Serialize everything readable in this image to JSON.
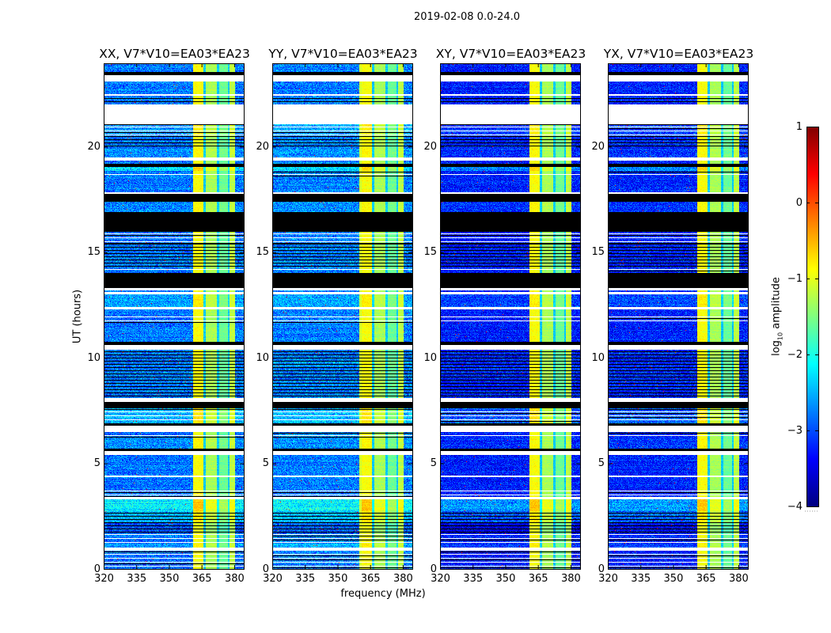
{
  "figure_title": "2019-02-08 0.0-24.0",
  "chart_data": {
    "type": "heatmap",
    "title": "2019-02-08 0.0-24.0",
    "xlabel": "frequency (MHz)",
    "ylabel": "UT (hours)",
    "xlim": [
      320,
      384.4
    ],
    "ylim": [
      0,
      23.95
    ],
    "xticks": [
      320,
      335,
      350,
      365,
      380
    ],
    "yticks": [
      0,
      5,
      10,
      15,
      20
    ],
    "panels": [
      {
        "title": "XX, V7*V10=EA03*EA23",
        "low_level": -2.8,
        "high_start": 361
      },
      {
        "title": "YY, V7*V10=EA03*EA23",
        "low_level": -2.75,
        "high_start": 360
      },
      {
        "title": "XY, V7*V10=EA03*EA23",
        "low_level": -3.25,
        "high_start": 361
      },
      {
        "title": "YX, V7*V10=EA03*EA23",
        "low_level": -3.2,
        "high_start": 361
      }
    ],
    "freq_bands": [
      {
        "from": 361,
        "to": 366,
        "level": -0.9
      },
      {
        "from": 366,
        "to": 367,
        "level": -2.4
      },
      {
        "from": 367,
        "to": 372,
        "level": -1.3
      },
      {
        "from": 372,
        "to": 373,
        "level": -2.4
      },
      {
        "from": 373,
        "to": 377,
        "level": -1.6
      },
      {
        "from": 377,
        "to": 378,
        "level": -2.4
      },
      {
        "from": 378,
        "to": 380.5,
        "level": -1.2
      }
    ],
    "time_segments": [
      [
        0.0,
        0.85,
        "striped_white",
        0
      ],
      [
        0.85,
        1.0,
        "white",
        0
      ],
      [
        1.0,
        1.2,
        "data",
        0.2
      ],
      [
        1.2,
        1.7,
        "striped_white",
        0
      ],
      [
        1.7,
        2.2,
        "striped",
        -0.2
      ],
      [
        2.2,
        2.75,
        "striped",
        0.3
      ],
      [
        2.75,
        3.3,
        "data",
        0.6
      ],
      [
        3.3,
        3.4,
        "white",
        0
      ],
      [
        3.4,
        3.75,
        "striped_white",
        0
      ],
      [
        3.75,
        4.35,
        "data",
        0
      ],
      [
        4.35,
        4.42,
        "white",
        0
      ],
      [
        4.42,
        5.4,
        "data",
        0
      ],
      [
        5.4,
        5.6,
        "white",
        0
      ],
      [
        5.6,
        5.7,
        "black",
        0
      ],
      [
        5.7,
        6.2,
        "data",
        0.1
      ],
      [
        6.2,
        6.5,
        "striped_white",
        0
      ],
      [
        6.5,
        6.8,
        "white",
        0
      ],
      [
        6.8,
        6.9,
        "black",
        0
      ],
      [
        6.9,
        7.6,
        "striped_white",
        0.3
      ],
      [
        7.6,
        7.9,
        "black",
        0
      ],
      [
        7.9,
        8.1,
        "white",
        0
      ],
      [
        8.1,
        10.4,
        "striped",
        0
      ],
      [
        10.4,
        10.6,
        "white",
        0
      ],
      [
        10.6,
        10.75,
        "black",
        0
      ],
      [
        10.75,
        11.65,
        "data",
        0
      ],
      [
        11.65,
        11.95,
        "striped_white",
        0
      ],
      [
        11.95,
        12.3,
        "data",
        0
      ],
      [
        12.3,
        12.4,
        "white",
        0
      ],
      [
        12.4,
        13.0,
        "data",
        0.2
      ],
      [
        13.0,
        13.1,
        "white",
        0
      ],
      [
        13.1,
        13.2,
        "data",
        0
      ],
      [
        13.2,
        13.3,
        "white",
        0
      ],
      [
        13.3,
        14.0,
        "black",
        0
      ],
      [
        14.0,
        14.2,
        "striped_white",
        0
      ],
      [
        14.2,
        15.4,
        "striped",
        0
      ],
      [
        15.4,
        15.95,
        "striped_white",
        0
      ],
      [
        15.95,
        16.9,
        "black",
        0
      ],
      [
        16.9,
        17.4,
        "data",
        0.1
      ],
      [
        17.4,
        17.75,
        "black",
        0
      ],
      [
        17.75,
        17.85,
        "white",
        0
      ],
      [
        17.85,
        18.6,
        "data",
        0
      ],
      [
        18.6,
        18.85,
        "striped_white",
        0
      ],
      [
        18.85,
        19.05,
        "data",
        0.5
      ],
      [
        19.05,
        19.2,
        "black",
        0
      ],
      [
        19.2,
        19.35,
        "data",
        0
      ],
      [
        19.35,
        19.5,
        "white",
        0
      ],
      [
        19.5,
        19.9,
        "data",
        0.1
      ],
      [
        19.9,
        20.5,
        "striped",
        0
      ],
      [
        20.5,
        21.05,
        "striped_white",
        0.2
      ],
      [
        21.05,
        22.0,
        "white",
        0
      ],
      [
        22.0,
        22.4,
        "striped",
        0
      ],
      [
        22.4,
        22.5,
        "white",
        0
      ],
      [
        22.5,
        23.1,
        "data",
        0
      ],
      [
        23.1,
        23.4,
        "white",
        0
      ],
      [
        23.4,
        23.55,
        "black",
        0
      ],
      [
        23.55,
        23.95,
        "data",
        0
      ]
    ],
    "colorbar": {
      "label_log": "log",
      "label_sub": "10",
      "label_rest": " amplitude",
      "range": [
        -4,
        1
      ],
      "ticks": [
        1,
        0,
        -1,
        -2,
        -3,
        -4
      ],
      "tick_labels": [
        "1",
        "0",
        "−1",
        "−2",
        "−3",
        "−4"
      ],
      "colormap": "jet"
    }
  }
}
